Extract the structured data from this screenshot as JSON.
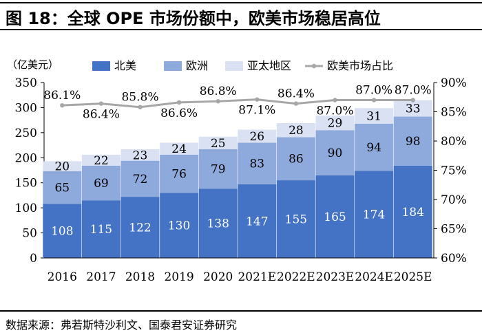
{
  "title": "图 18：全球 OPE 市场份额中，欧美市场稳居高位",
  "source": "数据来源：弗若斯特沙利文、国泰君安证券研究",
  "colors": {
    "north_america": "#4472C4",
    "europe": "#8EA9DB",
    "asia_pacific": "#D9E1F2",
    "share_line": "#A6A6A6"
  },
  "chart_data": {
    "type": "bar",
    "stacked": true,
    "categories": [
      "2016",
      "2017",
      "2018",
      "2019",
      "2020",
      "2021E",
      "2022E",
      "2023E",
      "2024E",
      "2025E"
    ],
    "unit_label": "（亿美元）",
    "ylim": [
      0,
      350
    ],
    "yticks": [
      "0",
      "50",
      "100",
      "150",
      "200",
      "250",
      "300",
      "350"
    ],
    "y2lim": [
      60,
      90
    ],
    "y2ticks": [
      "60%",
      "65%",
      "70%",
      "75%",
      "80%",
      "85%",
      "90%"
    ],
    "legend_position": "top",
    "grid": false,
    "series": [
      {
        "name": "北美",
        "values": [
          108,
          115,
          122,
          130,
          138,
          147,
          155,
          165,
          174,
          184
        ]
      },
      {
        "name": "欧洲",
        "values": [
          65,
          69,
          72,
          76,
          79,
          83,
          86,
          90,
          94,
          98
        ]
      },
      {
        "name": "亚太地区",
        "values": [
          20,
          22,
          23,
          24,
          25,
          26,
          28,
          29,
          31,
          33
        ]
      },
      {
        "name": "欧美市场占比",
        "axis": "right",
        "type": "line",
        "values": [
          86.1,
          86.4,
          85.8,
          86.6,
          86.8,
          87.1,
          86.4,
          87.0,
          87.0,
          87.0
        ],
        "labels": [
          "86.1%",
          "86.4%",
          "85.8%",
          "86.6%",
          "86.8%",
          "87.1%",
          "86.4%",
          "87.0%",
          "87.0%",
          "87.0%"
        ]
      }
    ]
  }
}
